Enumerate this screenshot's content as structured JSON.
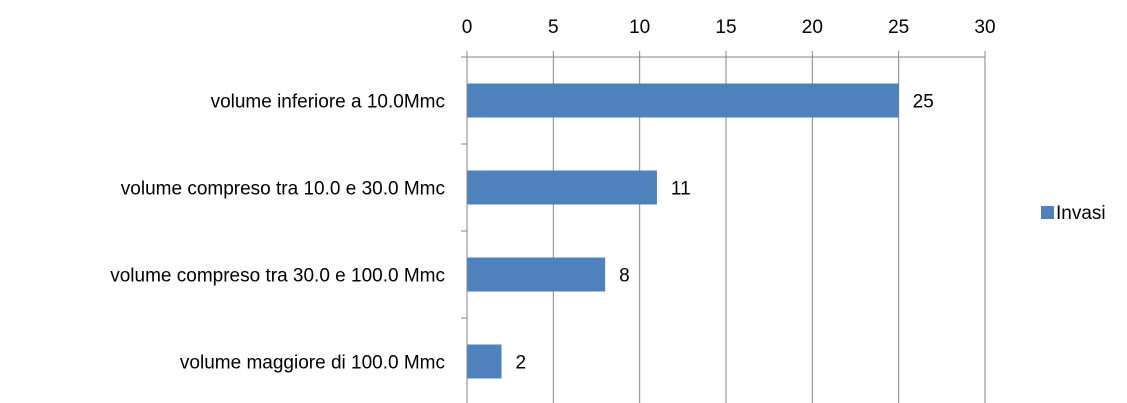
{
  "chart_data": {
    "type": "bar",
    "orientation": "horizontal",
    "categories": [
      "volume inferiore a 10.0Mmc",
      "volume compreso tra 10.0 e 30.0 Mmc",
      "volume compreso tra 30.0 e 100.0 Mmc",
      "volume maggiore di 100.0 Mmc"
    ],
    "series": [
      {
        "name": "Invasi",
        "values": [
          25,
          11,
          8,
          2
        ],
        "color": "#4F81BD"
      }
    ],
    "xlim": [
      0,
      30
    ],
    "xticks": [
      0,
      5,
      10,
      15,
      20,
      25,
      30
    ],
    "x_axis_position": "top",
    "grid": true,
    "data_labels": true,
    "legend_position": "right"
  }
}
